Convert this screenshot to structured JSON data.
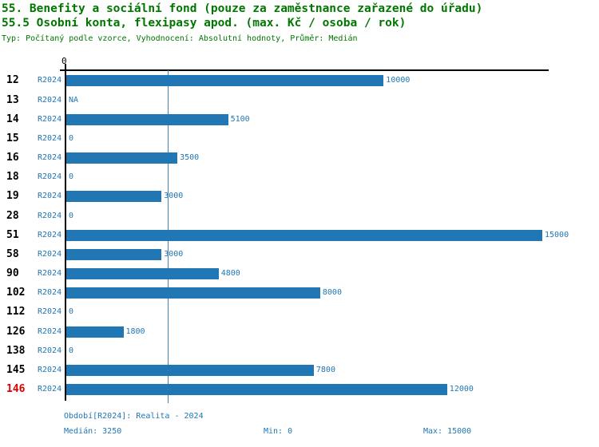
{
  "header": {
    "title_line1": "55. Benefity a sociální fond (pouze za zaměstnance zařazené do úřadu)",
    "title_line2": "55.5 Osobní konta, flexipasy apod. (max. Kč / osoba / rok)",
    "subtitle": "Typ: Počítaný podle vzorce, Vyhodnocení: Absolutní hodnoty, Průměr: Medián"
  },
  "axis": {
    "zero_label": "0",
    "max": 15000
  },
  "chart_data": {
    "type": "bar",
    "orientation": "horizontal",
    "title": "55.5 Osobní konta, flexipasy apod. (max. Kč / osoba / rok)",
    "categories": [
      "12",
      "13",
      "14",
      "15",
      "16",
      "18",
      "19",
      "28",
      "51",
      "58",
      "90",
      "102",
      "112",
      "126",
      "138",
      "145",
      "146"
    ],
    "series_label": "R2024",
    "values": [
      10000,
      null,
      5100,
      0,
      3500,
      0,
      3000,
      0,
      15000,
      3000,
      4800,
      8000,
      0,
      1800,
      0,
      7800,
      12000
    ],
    "value_labels": [
      "10000",
      "NA",
      "5100",
      "0",
      "3500",
      "0",
      "3000",
      "0",
      "15000",
      "3000",
      "4800",
      "8000",
      "0",
      "1800",
      "0",
      "7800",
      "12000"
    ],
    "highlighted_category": "146",
    "xlim": [
      0,
      15000
    ],
    "median_line": 3250,
    "legend_position": "none",
    "grid": "median-line-only"
  },
  "footer": {
    "period": "Období[R2024]: Realita - 2024",
    "median": "Medián: 3250",
    "min": "Min: 0",
    "max": "Max: 15000"
  },
  "colors": {
    "title_green": "#007700",
    "bar_blue": "#2077b4",
    "text_blue": "#2077b4",
    "median_blue": "#3d85c0",
    "highlight_red": "#e00000",
    "axis_black": "#000000"
  }
}
